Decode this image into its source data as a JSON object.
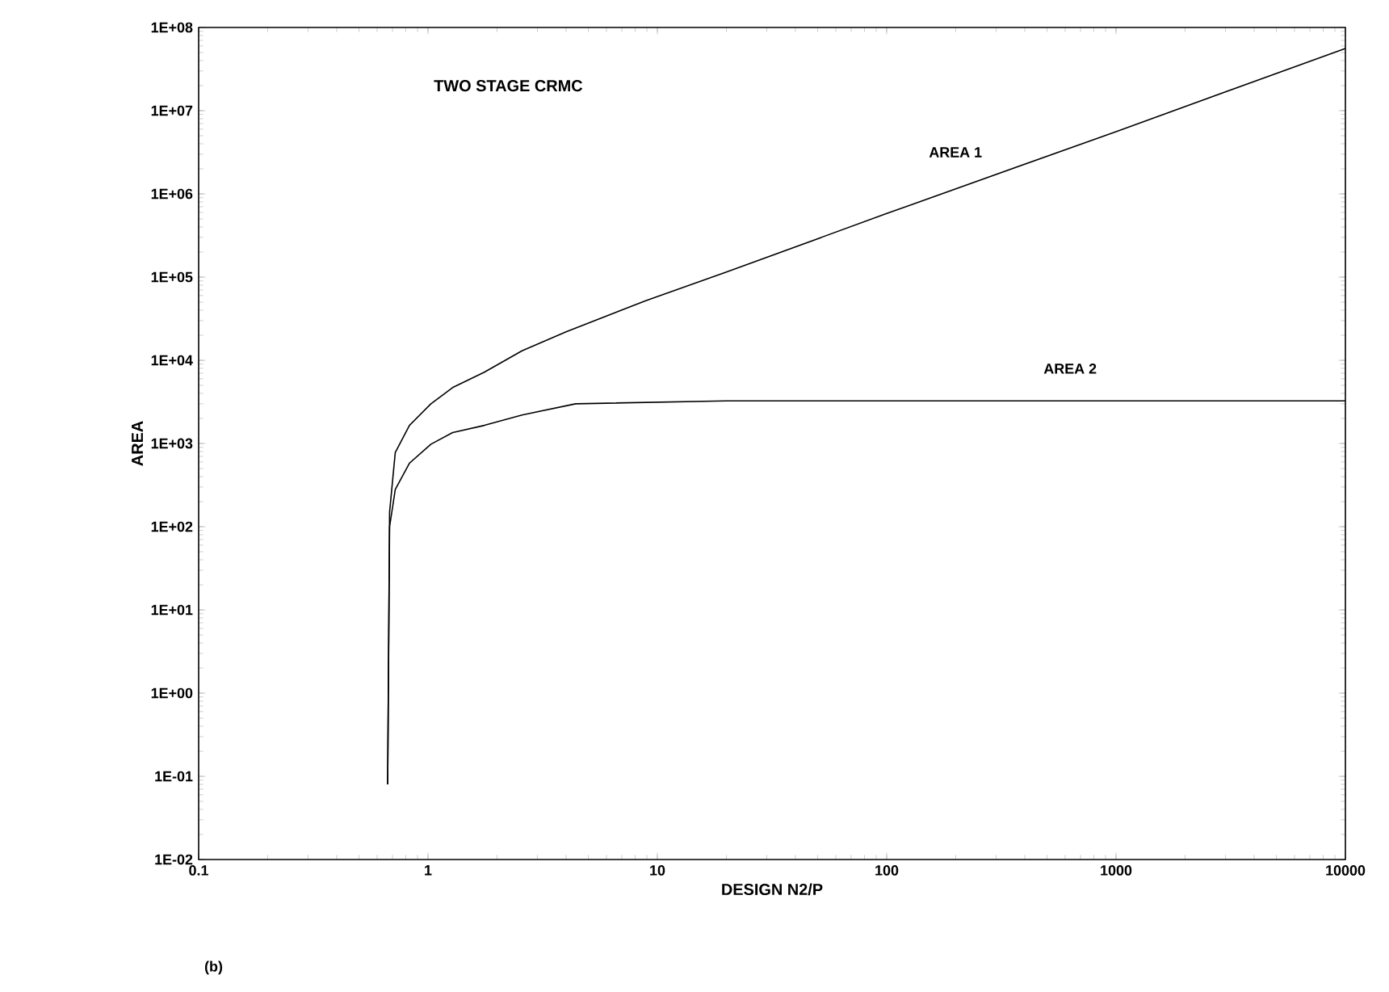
{
  "chart_data": {
    "type": "line",
    "title": "TWO STAGE CRMC",
    "xlabel": "DESIGN  N2/P",
    "ylabel": "AREA",
    "annotations": [
      "(b)"
    ],
    "series": [
      {
        "name": "AREA 1",
        "color": "#000000",
        "x": [
          0.667,
          0.68,
          0.72,
          0.83,
          1.03,
          1.28,
          1.76,
          2.57,
          4.0,
          8.9,
          20,
          100,
          1000,
          10000
        ],
        "values": [
          0.08,
          150,
          780,
          1650,
          3000,
          4700,
          7200,
          13000,
          22000,
          52000,
          115000,
          580000,
          5600000,
          56000000
        ]
      },
      {
        "name": "AREA 2",
        "color": "#000000",
        "x": [
          0.667,
          0.68,
          0.72,
          0.83,
          1.03,
          1.28,
          1.76,
          2.57,
          4.4,
          20,
          10000
        ],
        "values": [
          0.08,
          100,
          280,
          580,
          980,
          1350,
          1650,
          2200,
          3000,
          3250,
          3250
        ]
      }
    ],
    "log": "xy",
    "legend": false,
    "grid": false,
    "marker": "none",
    "line_style": "solid",
    "xlim": [
      0.1,
      10000
    ],
    "xticks": [
      0.1,
      1,
      10,
      100,
      1000,
      10000
    ],
    "ylim": [
      0.01,
      100000000
    ],
    "yticks": [
      {
        "value": 0.01,
        "label": "1E-02"
      },
      {
        "value": 0.1,
        "label": "1E-01"
      },
      {
        "value": 1,
        "label": "1E+00"
      },
      {
        "value": 10,
        "label": "1E+01"
      },
      {
        "value": 100,
        "label": "1E+02"
      },
      {
        "value": 1000,
        "label": "1E+03"
      },
      {
        "value": 10000,
        "label": "1E+04"
      },
      {
        "value": 100000,
        "label": "1E+05"
      },
      {
        "value": 1000000,
        "label": "1E+06"
      },
      {
        "value": 10000000,
        "label": "1E+07"
      },
      {
        "value": 100000000,
        "label": "1E+08"
      }
    ]
  }
}
